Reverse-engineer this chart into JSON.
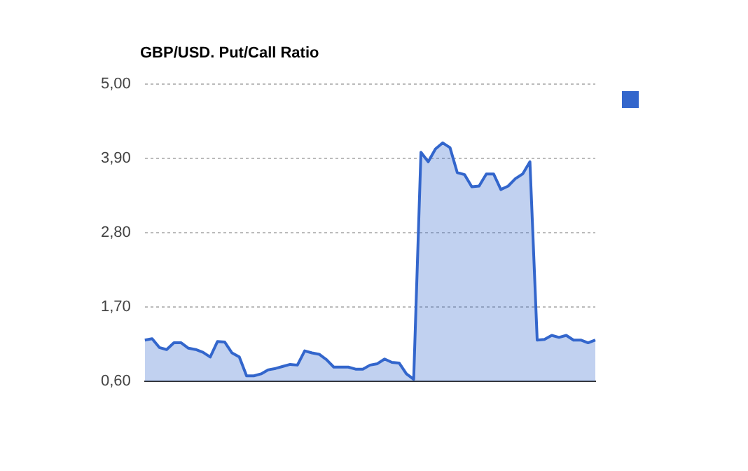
{
  "chart_data": {
    "type": "area",
    "title": "GBP/USD. Put/Call Ratio",
    "categories": [
      null,
      null,
      null,
      null,
      null,
      null,
      null,
      null,
      null,
      null,
      null,
      null,
      null,
      null,
      null,
      null,
      null,
      null,
      null,
      null,
      null,
      null,
      null,
      null,
      null,
      null,
      null,
      null,
      null,
      null,
      null,
      null,
      null,
      null,
      null,
      null,
      null,
      null,
      null,
      null,
      null,
      null,
      null,
      null,
      null,
      null,
      null,
      null,
      null,
      null,
      null,
      null,
      null,
      null,
      null,
      null,
      null,
      null,
      null,
      null,
      null,
      null,
      null
    ],
    "series": [
      {
        "color": "#3366cc",
        "values": [
          1.21,
          1.23,
          1.1,
          1.07,
          1.17,
          1.17,
          1.09,
          1.07,
          1.03,
          0.96,
          1.19,
          1.18,
          1.02,
          0.96,
          0.68,
          0.68,
          0.71,
          0.77,
          0.79,
          0.82,
          0.85,
          0.84,
          1.05,
          1.02,
          1.0,
          0.92,
          0.81,
          0.81,
          0.81,
          0.78,
          0.78,
          0.84,
          0.86,
          0.93,
          0.88,
          0.87,
          0.71,
          0.63,
          3.99,
          3.85,
          4.04,
          4.13,
          4.06,
          3.69,
          3.66,
          3.48,
          3.49,
          3.67,
          3.67,
          3.44,
          3.49,
          3.6,
          3.67,
          3.85,
          1.21,
          1.22,
          1.28,
          1.25,
          1.28,
          1.21,
          1.21,
          1.17,
          1.21
        ]
      }
    ],
    "ylim": [
      0.6,
      5.0
    ],
    "yticks": [
      {
        "value": 0.6,
        "label": "0,60"
      },
      {
        "value": 1.7,
        "label": "1,70"
      },
      {
        "value": 2.8,
        "label": "2,80"
      },
      {
        "value": 3.9,
        "label": "3,90"
      },
      {
        "value": 5.0,
        "label": "5,00"
      }
    ],
    "grid": "y"
  }
}
